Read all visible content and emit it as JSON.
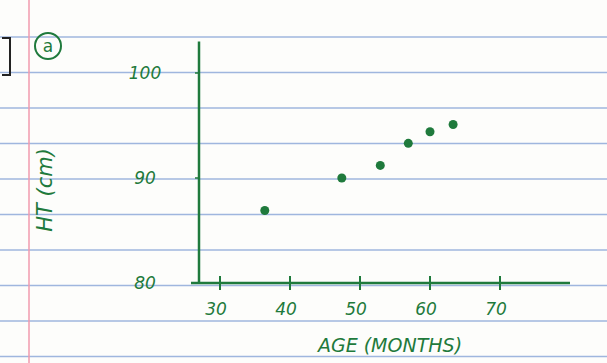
{
  "chart_data": {
    "type": "scatter",
    "annotations": [
      "a"
    ],
    "x_label": "AGE (MONTHS)",
    "y_label": "HT (cm)",
    "x": [
      36.4,
      47.4,
      52.9,
      56.9,
      60,
      63.3
    ],
    "values": [
      86.9,
      90,
      91.2,
      93.3,
      94.4,
      95.1
    ],
    "color": "#1f7a3c",
    "xlim": [
      27,
      80
    ],
    "ylim": [
      80,
      103
    ],
    "xticks": [
      30,
      40,
      50,
      60,
      70
    ],
    "yticks": [
      80,
      90,
      100
    ],
    "grid": false,
    "marker": "circle"
  }
}
